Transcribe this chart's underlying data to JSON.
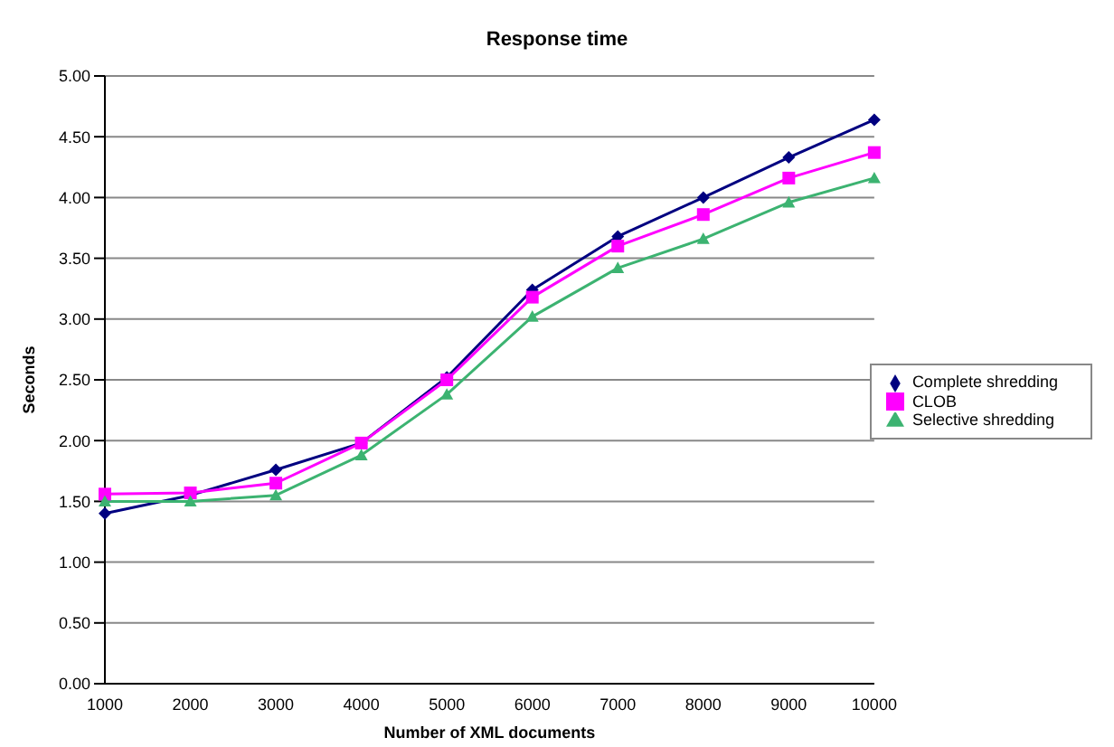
{
  "chart_data": {
    "type": "line",
    "title": "Response time",
    "xlabel": "Number of XML documents",
    "ylabel": "Seconds",
    "categories": [
      "1000",
      "2000",
      "3000",
      "4000",
      "5000",
      "6000",
      "7000",
      "8000",
      "9000",
      "10000"
    ],
    "series": [
      {
        "name": "Complete shredding",
        "color": "#000080",
        "marker": "diamond",
        "values": [
          1.4,
          1.55,
          1.76,
          1.98,
          2.52,
          3.24,
          3.68,
          4.0,
          4.33,
          4.64
        ]
      },
      {
        "name": "CLOB",
        "color": "#ff00ff",
        "marker": "square",
        "values": [
          1.56,
          1.57,
          1.65,
          1.98,
          2.5,
          3.18,
          3.6,
          3.86,
          4.16,
          4.37
        ]
      },
      {
        "name": "Selective shredding",
        "color": "#3cb371",
        "marker": "triangle",
        "values": [
          1.5,
          1.5,
          1.55,
          1.88,
          2.38,
          3.02,
          3.42,
          3.66,
          3.96,
          4.16
        ]
      }
    ],
    "ylim": [
      0,
      5
    ],
    "yticks": [
      {
        "value": 0,
        "label": "0.00"
      },
      {
        "value": 0.5,
        "label": "0.50"
      },
      {
        "value": 1,
        "label": "1.00"
      },
      {
        "value": 1.5,
        "label": "1.50"
      },
      {
        "value": 2,
        "label": "2.00"
      },
      {
        "value": 2.5,
        "label": "2.50"
      },
      {
        "value": 3,
        "label": "3.00"
      },
      {
        "value": 3.5,
        "label": "3.50"
      },
      {
        "value": 4,
        "label": "4.00"
      },
      {
        "value": 4.5,
        "label": "4.50"
      },
      {
        "value": 5,
        "label": "5.00"
      }
    ],
    "grid": "y",
    "legend": "right"
  }
}
